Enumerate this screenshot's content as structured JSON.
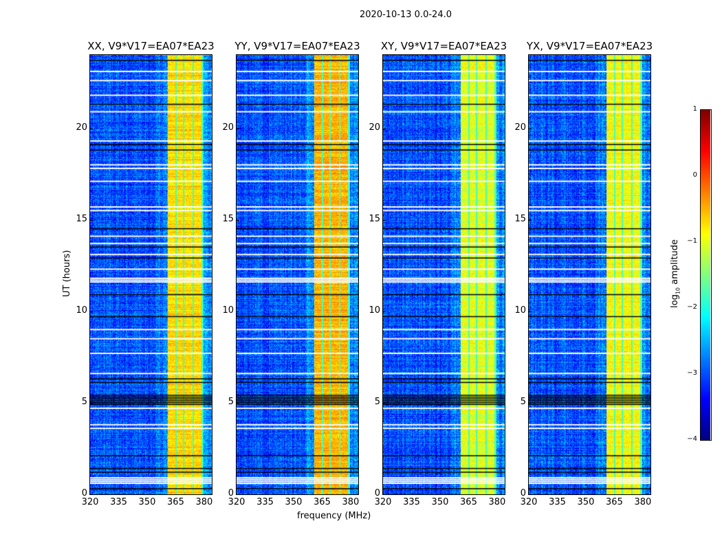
{
  "chart_data": {
    "type": "heatmap",
    "title": "2020-10-13 0.0-24.0",
    "xlabel": "frequency (MHz)",
    "ylabel": "UT (hours)",
    "xlim": [
      320,
      384
    ],
    "ylim": [
      0,
      24
    ],
    "xticks": [
      "320",
      "335",
      "350",
      "365",
      "380"
    ],
    "yticks": [
      "0",
      "5",
      "10",
      "15",
      "20"
    ],
    "panels": [
      {
        "title": "XX, V9*V17=EA07*EA23",
        "band_level": -0.7
      },
      {
        "title": "YY, V9*V17=EA07*EA23",
        "band_level": -0.5
      },
      {
        "title": "XY, V9*V17=EA07*EA23",
        "band_level": -1.0
      },
      {
        "title": "YX, V9*V17=EA07*EA23",
        "band_level": -0.9
      }
    ],
    "band_mhz": [
      360.5,
      379.5
    ],
    "background_level": -3.0,
    "flagged_hours_white": [
      0.6,
      0.7,
      0.8,
      0.9,
      3.6,
      3.8,
      4.7,
      6.6,
      7.7,
      8.5,
      9.0,
      11.6,
      11.7,
      11.8,
      12.3,
      13.1,
      13.7,
      14.1,
      15.5,
      15.7,
      17.1,
      17.8,
      18.0,
      19.3,
      20.9,
      21.8,
      22.6,
      23.1
    ],
    "flagged_hours_black": [
      0.3,
      1.2,
      1.4,
      2.1,
      4.9,
      5.0,
      5.1,
      5.2,
      5.3,
      5.4,
      6.1,
      6.3,
      9.7,
      10.9,
      12.9,
      13.5,
      14.5,
      18.8,
      19.1,
      21.3,
      23.7
    ],
    "colorbar": {
      "label_prefix": "log",
      "label_sub": "10",
      "label_suffix": " amplitude",
      "range": [
        -4,
        1
      ],
      "ticks": [
        "1",
        "0",
        "−1",
        "−2",
        "−3",
        "−4"
      ],
      "colormap": "jet"
    }
  }
}
